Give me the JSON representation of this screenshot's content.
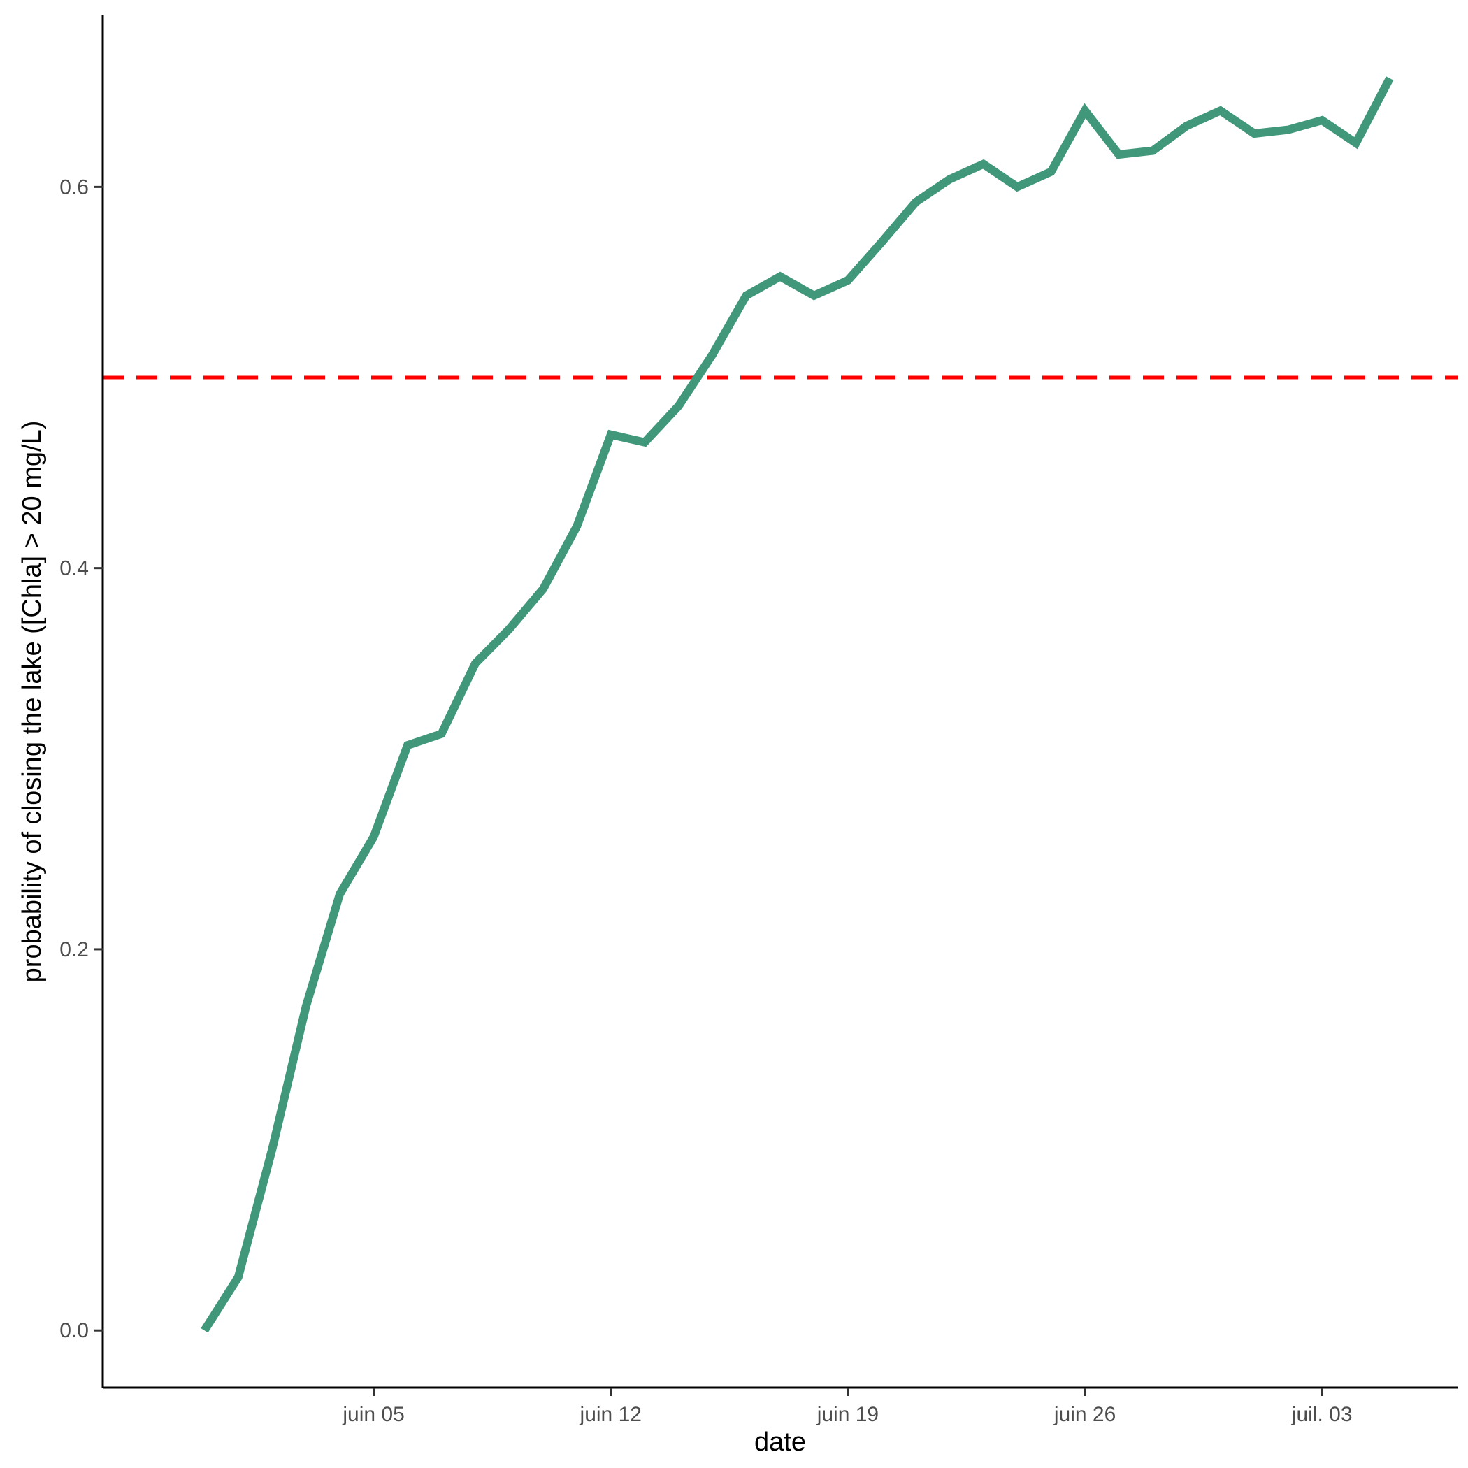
{
  "chart_data": {
    "type": "line",
    "title": "",
    "xlabel": "date",
    "ylabel": "probability of closing the lake ([Chla] > 20 mg/L)",
    "x_type": "date",
    "xlim": [
      "2023-05-28",
      "2023-07-07"
    ],
    "ylim": [
      -0.03,
      0.69
    ],
    "x_ticks": [
      {
        "date": "2023-06-05",
        "label": "juin 05"
      },
      {
        "date": "2023-06-12",
        "label": "juin 12"
      },
      {
        "date": "2023-06-19",
        "label": "juin 19"
      },
      {
        "date": "2023-06-26",
        "label": "juin 26"
      },
      {
        "date": "2023-07-03",
        "label": "juil. 03"
      }
    ],
    "y_ticks": [
      {
        "value": 0.0,
        "label": "0.0"
      },
      {
        "value": 0.2,
        "label": "0.2"
      },
      {
        "value": 0.4,
        "label": "0.4"
      },
      {
        "value": 0.6,
        "label": "0.6"
      }
    ],
    "grid": false,
    "legend": "none",
    "series": [
      {
        "color": "#41977A",
        "x": [
          "2023-05-31",
          "2023-06-01",
          "2023-06-02",
          "2023-06-03",
          "2023-06-04",
          "2023-06-05",
          "2023-06-06",
          "2023-06-07",
          "2023-06-08",
          "2023-06-09",
          "2023-06-10",
          "2023-06-11",
          "2023-06-12",
          "2023-06-13",
          "2023-06-14",
          "2023-06-15",
          "2023-06-16",
          "2023-06-17",
          "2023-06-18",
          "2023-06-19",
          "2023-06-20",
          "2023-06-21",
          "2023-06-22",
          "2023-06-23",
          "2023-06-24",
          "2023-06-25",
          "2023-06-26",
          "2023-06-27",
          "2023-06-28",
          "2023-06-29",
          "2023-06-30",
          "2023-07-01",
          "2023-07-02",
          "2023-07-03",
          "2023-07-04",
          "2023-07-05"
        ],
        "y": [
          0.0,
          0.028,
          0.095,
          0.17,
          0.229,
          0.259,
          0.307,
          0.313,
          0.35,
          0.368,
          0.389,
          0.422,
          0.47,
          0.466,
          0.485,
          0.512,
          0.543,
          0.553,
          0.543,
          0.551,
          0.571,
          0.592,
          0.604,
          0.612,
          0.6,
          0.608,
          0.64,
          0.617,
          0.619,
          0.632,
          0.64,
          0.628,
          0.63,
          0.635,
          0.623,
          0.657
        ]
      }
    ],
    "reference_line": {
      "y": 0.5,
      "color": "#FF0000",
      "style": "dashed"
    }
  }
}
